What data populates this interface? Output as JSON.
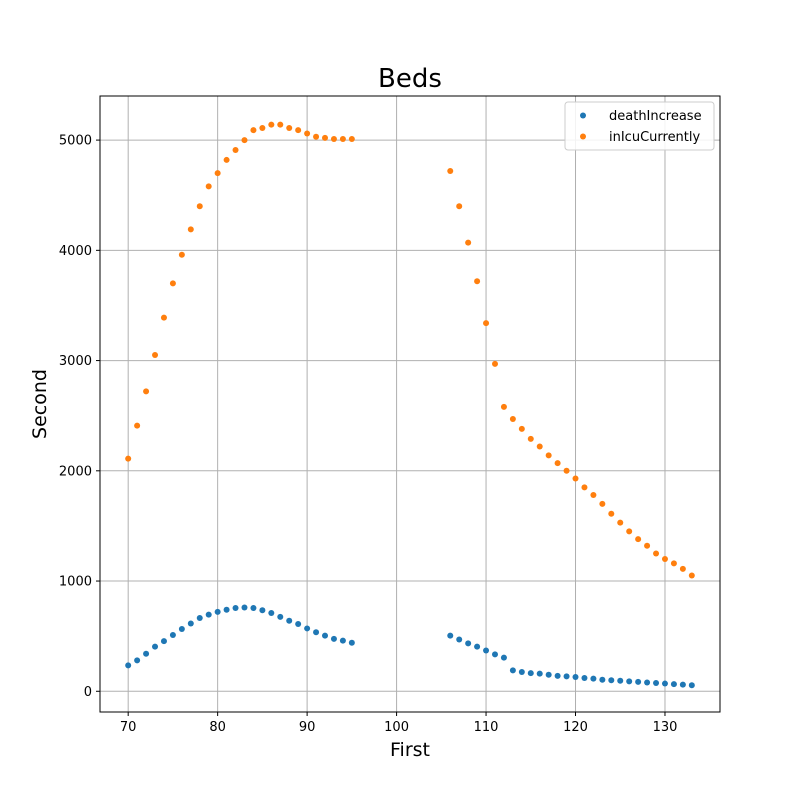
{
  "chart_data": {
    "type": "scatter",
    "title": "Beds",
    "xlabel": "First",
    "ylabel": "Second",
    "xlim": [
      66.85,
      136.15
    ],
    "ylim": [
      -188,
      5400
    ],
    "xticks": [
      70,
      80,
      90,
      100,
      110,
      120,
      130
    ],
    "yticks": [
      0,
      1000,
      2000,
      3000,
      4000,
      5000
    ],
    "grid": true,
    "legend_position": "top-right",
    "series": [
      {
        "name": "deathIncrease",
        "color": "#1f77b4",
        "points": [
          [
            70,
            235
          ],
          [
            71,
            280
          ],
          [
            72,
            340
          ],
          [
            73,
            405
          ],
          [
            74,
            455
          ],
          [
            75,
            510
          ],
          [
            76,
            565
          ],
          [
            77,
            615
          ],
          [
            78,
            665
          ],
          [
            79,
            695
          ],
          [
            80,
            720
          ],
          [
            81,
            740
          ],
          [
            82,
            755
          ],
          [
            83,
            760
          ],
          [
            84,
            755
          ],
          [
            85,
            735
          ],
          [
            86,
            710
          ],
          [
            87,
            675
          ],
          [
            88,
            640
          ],
          [
            89,
            610
          ],
          [
            90,
            570
          ],
          [
            91,
            535
          ],
          [
            92,
            505
          ],
          [
            93,
            475
          ],
          [
            94,
            460
          ],
          [
            95,
            440
          ],
          [
            106,
            505
          ],
          [
            107,
            470
          ],
          [
            108,
            435
          ],
          [
            109,
            405
          ],
          [
            110,
            370
          ],
          [
            111,
            335
          ],
          [
            112,
            305
          ],
          [
            113,
            190
          ],
          [
            114,
            175
          ],
          [
            115,
            165
          ],
          [
            116,
            160
          ],
          [
            117,
            150
          ],
          [
            118,
            140
          ],
          [
            119,
            135
          ],
          [
            120,
            130
          ],
          [
            121,
            120
          ],
          [
            122,
            115
          ],
          [
            123,
            105
          ],
          [
            124,
            100
          ],
          [
            125,
            95
          ],
          [
            126,
            90
          ],
          [
            127,
            85
          ],
          [
            128,
            80
          ],
          [
            129,
            75
          ],
          [
            130,
            70
          ],
          [
            131,
            65
          ],
          [
            132,
            60
          ],
          [
            133,
            55
          ]
        ]
      },
      {
        "name": "inIcuCurrently",
        "color": "#ff7f0e",
        "points": [
          [
            70,
            2110
          ],
          [
            71,
            2410
          ],
          [
            72,
            2720
          ],
          [
            73,
            3050
          ],
          [
            74,
            3390
          ],
          [
            75,
            3700
          ],
          [
            76,
            3960
          ],
          [
            77,
            4190
          ],
          [
            78,
            4400
          ],
          [
            79,
            4580
          ],
          [
            80,
            4700
          ],
          [
            81,
            4820
          ],
          [
            82,
            4910
          ],
          [
            83,
            5000
          ],
          [
            84,
            5090
          ],
          [
            85,
            5110
          ],
          [
            86,
            5140
          ],
          [
            87,
            5140
          ],
          [
            88,
            5110
          ],
          [
            89,
            5090
          ],
          [
            90,
            5060
          ],
          [
            91,
            5030
          ],
          [
            92,
            5020
          ],
          [
            93,
            5010
          ],
          [
            94,
            5010
          ],
          [
            95,
            5010
          ],
          [
            106,
            4720
          ],
          [
            107,
            4400
          ],
          [
            108,
            4070
          ],
          [
            109,
            3720
          ],
          [
            110,
            3340
          ],
          [
            111,
            2970
          ],
          [
            112,
            2580
          ],
          [
            113,
            2470
          ],
          [
            114,
            2380
          ],
          [
            115,
            2290
          ],
          [
            116,
            2220
          ],
          [
            117,
            2140
          ],
          [
            118,
            2070
          ],
          [
            119,
            2000
          ],
          [
            120,
            1930
          ],
          [
            121,
            1850
          ],
          [
            122,
            1780
          ],
          [
            123,
            1700
          ],
          [
            124,
            1610
          ],
          [
            125,
            1530
          ],
          [
            126,
            1450
          ],
          [
            127,
            1380
          ],
          [
            128,
            1320
          ],
          [
            129,
            1250
          ],
          [
            130,
            1200
          ],
          [
            131,
            1160
          ],
          [
            132,
            1110
          ],
          [
            133,
            1050
          ]
        ]
      }
    ]
  }
}
